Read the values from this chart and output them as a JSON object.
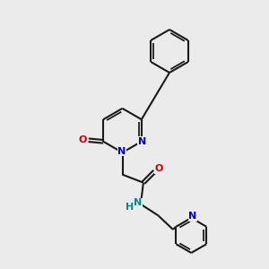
{
  "bg_color": "#ebebeb",
  "bond_color": "#1a1a1a",
  "N_color": "#0000cc",
  "O_color": "#cc0000",
  "NH_color": "#008888",
  "lw": 1.5,
  "fs": 8.0,
  "fig_size": [
    3.0,
    3.0
  ],
  "dpi": 100,
  "xlim": [
    0,
    10
  ],
  "ylim": [
    0,
    10
  ]
}
